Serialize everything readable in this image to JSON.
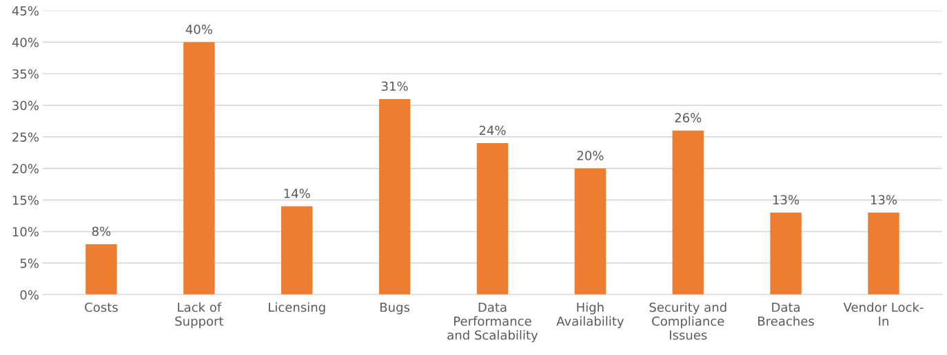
{
  "chart_data": {
    "type": "bar",
    "categories": [
      "Costs",
      "Lack of\nSupport",
      "Licensing",
      "Bugs",
      "Data\nPerformance\nand Scalability",
      "High\nAvailability",
      "Security and\nCompliance\nIssues",
      "Data\nBreaches",
      "Vendor Lock-\nIn"
    ],
    "values": [
      8,
      40,
      14,
      31,
      24,
      20,
      26,
      13,
      13
    ],
    "color": "#ed7d31",
    "data_labels": true,
    "value_labels": [
      "8%",
      "40%",
      "14%",
      "31%",
      "24%",
      "20%",
      "26%",
      "13%",
      "13%"
    ],
    "ylim": [
      0,
      45
    ],
    "yticks": [
      {
        "value": 0,
        "label": "0%"
      },
      {
        "value": 5,
        "label": "5%"
      },
      {
        "value": 10,
        "label": "10%"
      },
      {
        "value": 15,
        "label": "15%"
      },
      {
        "value": 20,
        "label": "20%"
      },
      {
        "value": 25,
        "label": "25%"
      },
      {
        "value": 30,
        "label": "30%"
      },
      {
        "value": 35,
        "label": "35%"
      },
      {
        "value": 40,
        "label": "40%"
      },
      {
        "value": 45,
        "label": "45%"
      }
    ],
    "grid": "y",
    "legend": false
  }
}
